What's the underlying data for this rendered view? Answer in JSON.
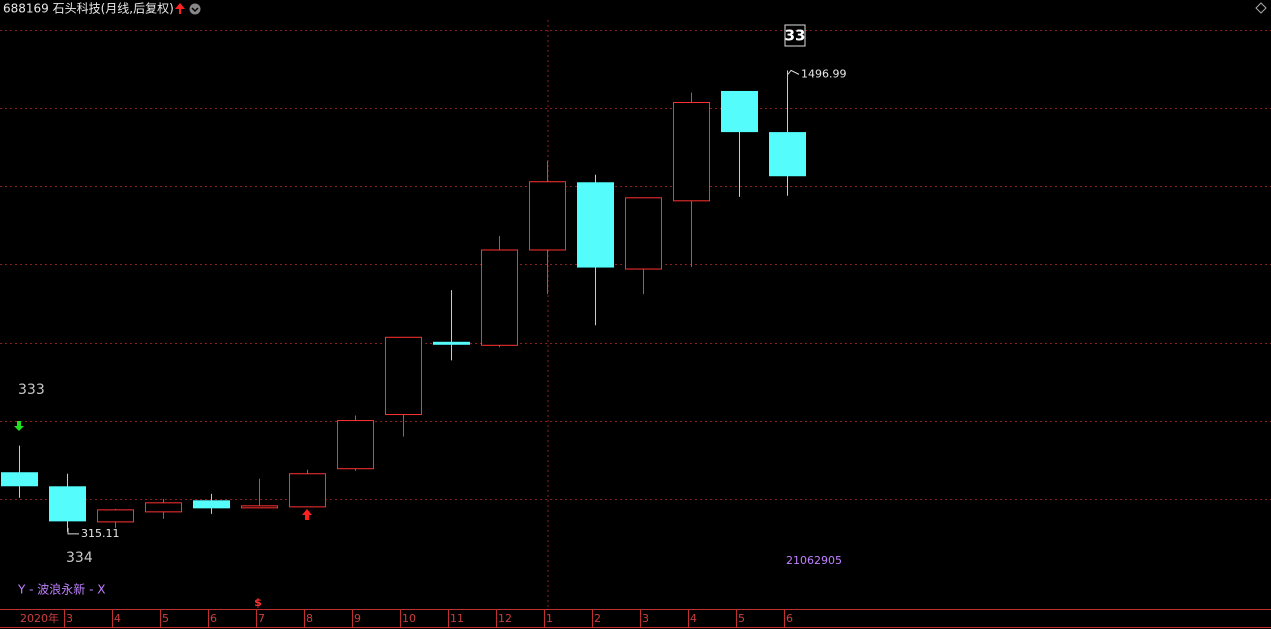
{
  "chart_data": {
    "type": "candlestick",
    "title": "688169 石头科技(月线,后复权)",
    "categories": [
      "2020年",
      "3",
      "4",
      "5",
      "6",
      "7",
      "8",
      "9",
      "10",
      "11",
      "12",
      "1",
      "2",
      "3",
      "4",
      "5",
      "6"
    ],
    "open": [
      466.7,
      430.7,
      340.8,
      366.5,
      394.8,
      379.3,
      379.3,
      477.0,
      615.7,
      800.7,
      793.0,
      1037.1,
      1209.2,
      988.3,
      1163.0,
      1443.0,
      1337.7
    ],
    "high": [
      536.1,
      464.1,
      374.2,
      399.9,
      412.7,
      451.3,
      474.4,
      613.1,
      813.5,
      934.3,
      1073.0,
      1265.7,
      1229.8,
      1170.7,
      1440.5,
      1443.0,
      1496.99
    ],
    "low": [
      402.5,
      315.11,
      325.4,
      348.5,
      361.4,
      376.8,
      379.3,
      471.8,
      559.2,
      754.5,
      787.9,
      924.0,
      844.4,
      924.0,
      993.4,
      1173.2,
      1175.8
    ],
    "close": [
      433.3,
      343.4,
      371.6,
      389.6,
      376.8,
      381.9,
      464.1,
      600.3,
      813.5,
      795.6,
      1037.1,
      1211.8,
      993.4,
      1170.7,
      1414.8,
      1340.2,
      1227.2
    ],
    "up_color": "#ff3232",
    "down_color": "#54fcfc",
    "ylim": [
      128,
      1626
    ],
    "yticks": [
      400,
      600,
      800,
      1000,
      1200,
      1400,
      1600
    ],
    "grid": true,
    "annotations": {
      "wave_count": "33",
      "wave_upper": "333",
      "wave_lower": "334",
      "date_code": "21062905",
      "indicator": "Y - 波浪永新 - X",
      "marker": "$"
    }
  }
}
